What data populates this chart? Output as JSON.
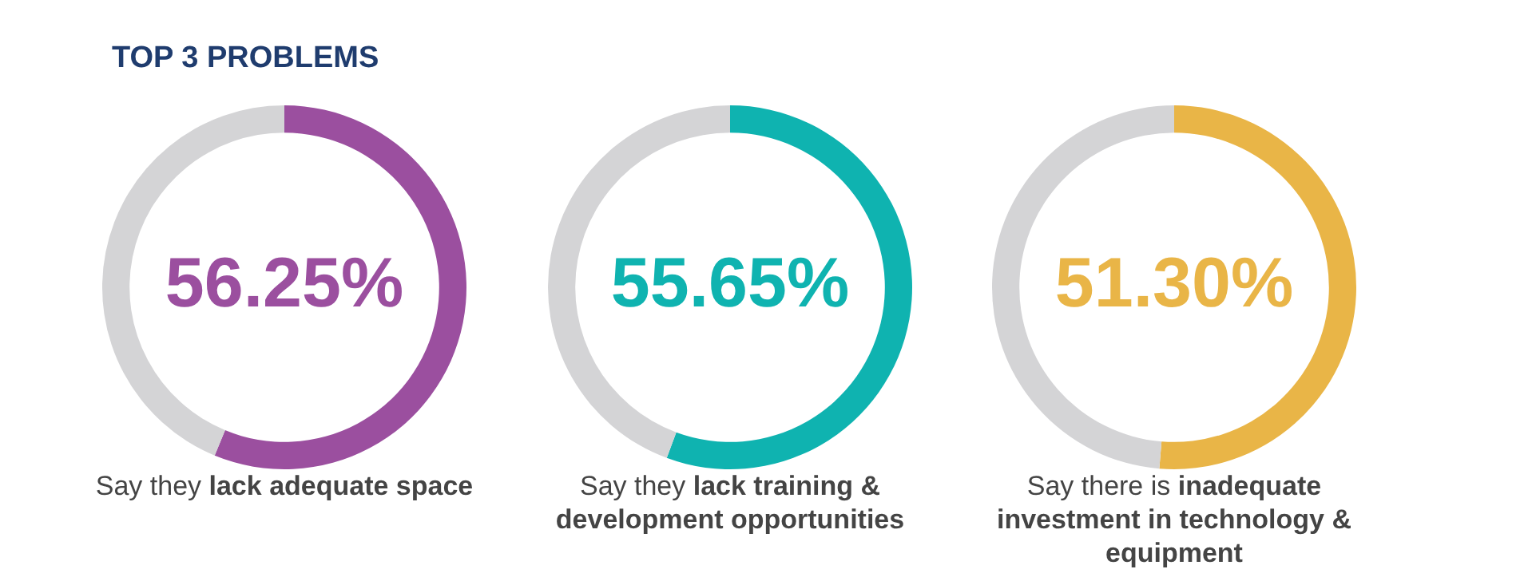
{
  "chart_data": [
    {
      "type": "donut",
      "title": "TOP 3 PROBLEMS",
      "categories": [
        null,
        null
      ],
      "values": [
        56.25,
        43.75
      ],
      "colors": [
        "#9b4f9f",
        "#d4d4d6"
      ],
      "value_labels": [
        "56.25%",
        null
      ],
      "annotations": [
        "Say they",
        "lack adequate space"
      ]
    },
    {
      "type": "donut",
      "categories": [
        null,
        null
      ],
      "values": [
        55.65,
        44.35
      ],
      "colors": [
        "#0fb3b0",
        "#d4d4d6"
      ],
      "value_labels": [
        "55.65%",
        null
      ],
      "annotations": [
        "Say they",
        "lack training & development opportunities"
      ]
    },
    {
      "type": "donut",
      "categories": [
        null,
        null
      ],
      "values": [
        51.3,
        48.7
      ],
      "colors": [
        "#e9b547",
        "#d4d4d6"
      ],
      "value_labels": [
        "51.30%",
        null
      ],
      "annotations": [
        "Say there is",
        "inadequate investment in technology & equipment"
      ]
    }
  ]
}
